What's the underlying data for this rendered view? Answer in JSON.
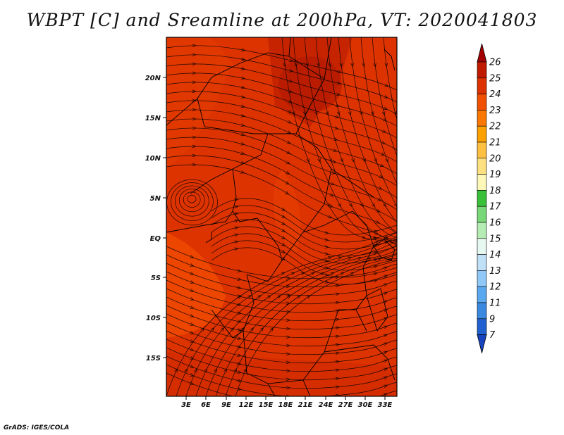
{
  "title": "WBPT [C] and Sreamline at 200hPa, VT: 2020041803",
  "credit": "GrADS: IGES/COLA",
  "lat_ticks": [
    "20N",
    "15N",
    "10N",
    "5N",
    "EQ",
    "5S",
    "10S",
    "15S"
  ],
  "lon_ticks": [
    "3E",
    "6E",
    "9E",
    "12E",
    "15E",
    "18E",
    "21E",
    "24E",
    "27E",
    "30E",
    "33E"
  ],
  "colorbar": {
    "labels": [
      "26",
      "25",
      "24",
      "23",
      "22",
      "21",
      "20",
      "19",
      "18",
      "17",
      "16",
      "15",
      "14",
      "13",
      "12",
      "11",
      "9",
      "7"
    ],
    "colors": [
      "#a50000",
      "#c01a00",
      "#dc3200",
      "#f05000",
      "#fa7800",
      "#fca000",
      "#fdc040",
      "#fde080",
      "#fef8b8",
      "#38c038",
      "#78d878",
      "#b4ecb4",
      "#e6f8f0",
      "#c0e0f8",
      "#90c8f8",
      "#5aa8f0",
      "#3a88e0",
      "#2060d0",
      "#1844c0"
    ]
  },
  "colors": {
    "field_main": "#dd3300",
    "field_warm": "#c22200",
    "field_cool": "#ee4a00",
    "line": "#1a0600"
  }
}
